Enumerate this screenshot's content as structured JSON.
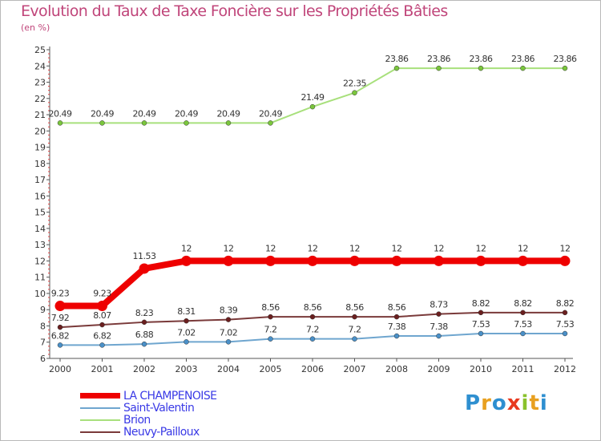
{
  "header": {
    "title": "Evolution du Taux de Taxe Foncière sur les Propriétés Bâties",
    "unit": "(en %)"
  },
  "logo": {
    "text": "Proxiti",
    "letters": [
      {
        "char": "P",
        "color": "#2e8fd0"
      },
      {
        "char": "r",
        "color": "#e8a020"
      },
      {
        "char": "o",
        "color": "#2e8fd0"
      },
      {
        "char": "x",
        "color": "#e83a20"
      },
      {
        "char": "i",
        "color": "#8ac22c"
      },
      {
        "char": "t",
        "color": "#e8a020"
      },
      {
        "char": "i",
        "color": "#2e8fd0"
      }
    ]
  },
  "chart_data": {
    "type": "line",
    "title": "Evolution du Taux de Taxe Foncière sur les Propriétés Bâties",
    "ylabel": "(en %)",
    "xlabel": "",
    "ylim": [
      6,
      25
    ],
    "yticks": [
      6,
      7,
      8,
      9,
      10,
      11,
      12,
      13,
      14,
      15,
      16,
      17,
      18,
      19,
      20,
      21,
      22,
      23,
      24,
      25
    ],
    "categories": [
      "2000",
      "2001",
      "2002",
      "2003",
      "2004",
      "2005",
      "2006",
      "2007",
      "2008",
      "2009",
      "2010",
      "2011",
      "2012"
    ],
    "grid": false,
    "legend": "bottom-left",
    "series": [
      {
        "name": "LA CHAMPENOISE",
        "color": "#ee0000",
        "width": "thick",
        "values": [
          9.23,
          9.23,
          11.53,
          12,
          12,
          12,
          12,
          12,
          12,
          12,
          12,
          12,
          12
        ],
        "labels": [
          "9.23",
          "9.23",
          "11.53",
          "12",
          "12",
          "12",
          "12",
          "12",
          "12",
          "12",
          "12",
          "12",
          "12"
        ]
      },
      {
        "name": "Saint-Valentin",
        "color": "#6fa6cf",
        "marker_color": "#4a90c8",
        "width": "thin",
        "values": [
          6.82,
          6.82,
          6.88,
          7.02,
          7.02,
          7.2,
          7.2,
          7.2,
          7.38,
          7.38,
          7.53,
          7.53,
          7.53
        ],
        "labels": [
          "6.82",
          "6.82",
          "6.88",
          "7.02",
          "7.02",
          "7.2",
          "7.2",
          "7.2",
          "7.38",
          "7.38",
          "7.53",
          "7.53",
          "7.53"
        ]
      },
      {
        "name": "Brion",
        "color": "#a8e07c",
        "marker_color": "#7ac63c",
        "width": "thin",
        "values": [
          20.49,
          20.49,
          20.49,
          20.49,
          20.49,
          20.49,
          21.49,
          22.35,
          23.86,
          23.86,
          23.86,
          23.86,
          23.86
        ],
        "labels": [
          "20.49",
          "20.49",
          "20.49",
          "20.49",
          "20.49",
          "20.49",
          "21.49",
          "22.35",
          "23.86",
          "23.86",
          "23.86",
          "23.86",
          "23.86"
        ]
      },
      {
        "name": "Neuvy-Pailloux",
        "color": "#7a3a3a",
        "marker_color": "#6b1f1f",
        "width": "thin",
        "values": [
          7.92,
          8.07,
          8.23,
          8.31,
          8.39,
          8.56,
          8.56,
          8.56,
          8.56,
          8.73,
          8.82,
          8.82,
          8.82
        ],
        "labels": [
          "7.92",
          "8.07",
          "8.23",
          "8.31",
          "8.39",
          "8.56",
          "8.56",
          "8.56",
          "8.56",
          "8.73",
          "8.82",
          "8.82",
          "8.82"
        ]
      }
    ]
  }
}
